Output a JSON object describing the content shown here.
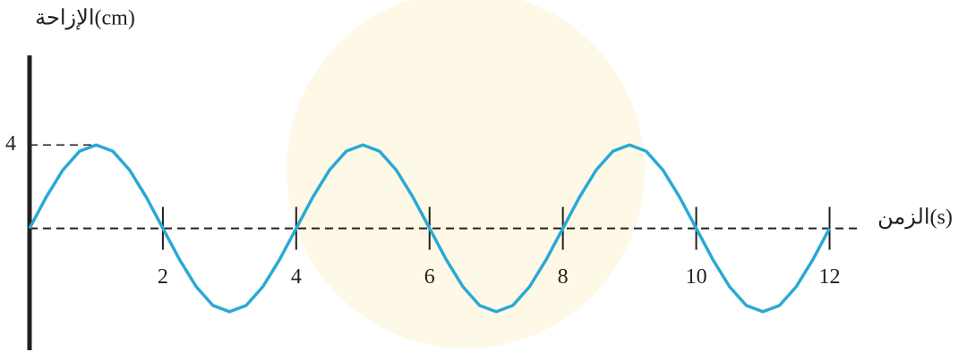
{
  "chart_data": {
    "type": "line",
    "y_label": "الإزاحة(cm)",
    "x_label": "الزمن(s)",
    "x": [
      0,
      0.25,
      0.5,
      0.75,
      1,
      1.25,
      1.5,
      1.75,
      2,
      2.25,
      2.5,
      2.75,
      3,
      3.25,
      3.5,
      3.75,
      4,
      4.25,
      4.5,
      4.75,
      5,
      5.25,
      5.5,
      5.75,
      6,
      6.25,
      6.5,
      6.75,
      7,
      7.25,
      7.5,
      7.75,
      8,
      8.25,
      8.5,
      8.75,
      9,
      9.25,
      9.5,
      9.75,
      10,
      10.25,
      10.5,
      10.75,
      11,
      11.25,
      11.5,
      11.75,
      12
    ],
    "series": [
      {
        "color": "#29a9d6",
        "values": [
          0,
          1.5,
          2.8,
          3.7,
          4,
          3.7,
          2.8,
          1.5,
          0,
          -1.5,
          -2.8,
          -3.7,
          -4,
          -3.7,
          -2.8,
          -1.5,
          0,
          1.5,
          2.8,
          3.7,
          4,
          3.7,
          2.8,
          1.5,
          0,
          -1.5,
          -2.8,
          -3.7,
          -4,
          -3.7,
          -2.8,
          -1.5,
          0,
          1.5,
          2.8,
          3.7,
          4,
          3.7,
          2.8,
          1.5,
          0,
          -1.5,
          -2.8,
          -3.7,
          -4,
          -3.7,
          -2.8,
          -1.5,
          0
        ]
      }
    ],
    "xlim": [
      0,
      12.45
    ],
    "ylim": [
      -5.85,
      8.3
    ],
    "xticks": [
      2,
      4,
      6,
      8,
      10,
      12
    ],
    "yticks": [
      4
    ]
  }
}
